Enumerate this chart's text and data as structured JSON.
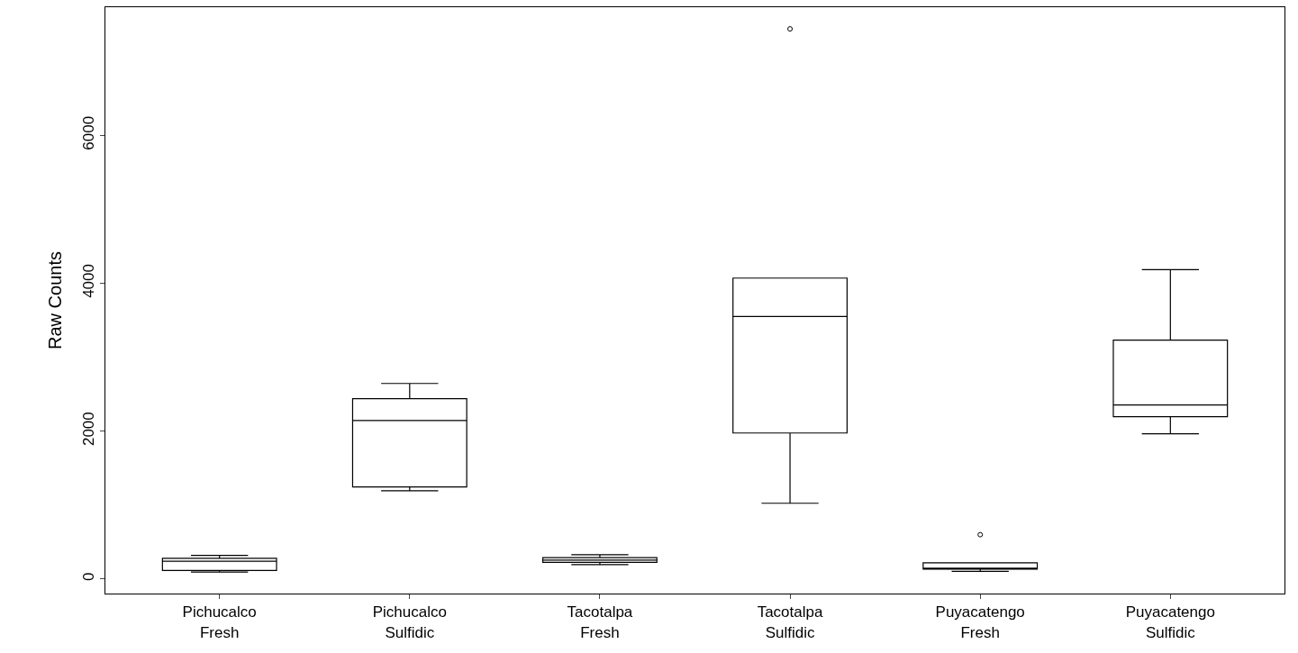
{
  "chart_data": {
    "type": "box",
    "ylabel": "Raw Counts",
    "categories": [
      "Pichucalco\nFresh",
      "Pichucalco\nSulfidic",
      "Tacotalpa\nFresh",
      "Tacotalpa\nSulfidic",
      "Puyacatengo\nFresh",
      "Puyacatengo\nSulfidic"
    ],
    "boxes": [
      {
        "low": 95,
        "q1": 115,
        "median": 240,
        "q3": 280,
        "high": 320
      },
      {
        "low": 1195,
        "q1": 1245,
        "median": 2145,
        "q3": 2440,
        "high": 2645
      },
      {
        "low": 195,
        "q1": 225,
        "median": 255,
        "q3": 290,
        "high": 330
      },
      {
        "low": 1025,
        "q1": 1975,
        "median": 3550,
        "q3": 4070,
        "high": 4070,
        "outliers": [
          7440
        ]
      },
      {
        "low": 105,
        "q1": 135,
        "median": 145,
        "q3": 220,
        "high": 220,
        "outliers": [
          600
        ]
      },
      {
        "low": 1965,
        "q1": 2195,
        "median": 2355,
        "q3": 3230,
        "high": 4185
      }
    ],
    "color": "#000000",
    "ylim": [
      -196,
      7733
    ],
    "yticks": [
      0,
      2000,
      4000,
      6000
    ]
  }
}
